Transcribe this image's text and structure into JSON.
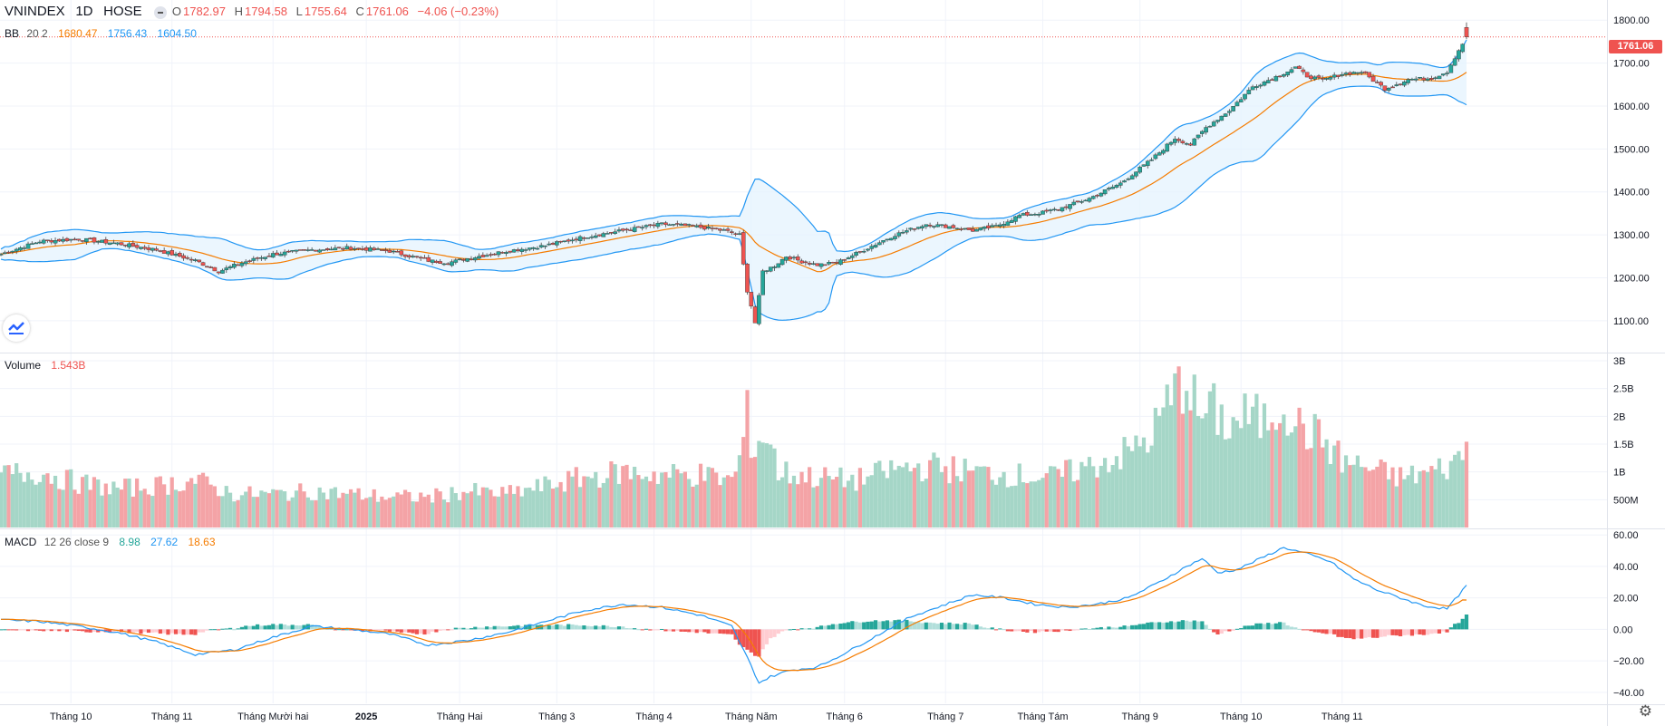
{
  "header": {
    "symbol": "VNINDEX",
    "interval": "1D",
    "exchange": "HOSE",
    "o_label": "O",
    "o": "1782.97",
    "h_label": "H",
    "h": "1794.58",
    "l_label": "L",
    "l": "1755.64",
    "c_label": "C",
    "c": "1761.06",
    "change": "−4.06 (−0.23%)"
  },
  "bb_legend": {
    "name": "BB",
    "params": "20 2",
    "basis": "1680.47",
    "upper": "1756.43",
    "lower": "1604.50"
  },
  "volume_legend": {
    "name": "Volume",
    "value": "1.543B"
  },
  "macd_legend": {
    "name": "MACD",
    "params": "12 26 close 9",
    "hist": "8.98",
    "macd": "27.62",
    "signal": "18.63"
  },
  "last_price_tag": "1761.06",
  "colors": {
    "up": "#26a69a",
    "down": "#ef5350",
    "upVol": "#a5d6c7",
    "downVol": "#f4a3a6",
    "macd": "#2196f3",
    "signal": "#f57c00",
    "bbBasis": "#f57c00",
    "bbBand": "#2196f3",
    "bbFill": "#e3f2fd",
    "grid": "#f0f3fa"
  },
  "chart_data": {
    "type": "candlestick",
    "price_axis": {
      "ticks": [
        "1800.00",
        "1700.00",
        "1600.00",
        "1500.00",
        "1400.00",
        "1300.00",
        "1200.00",
        "1100.00"
      ],
      "ylim": [
        1030,
        1830
      ]
    },
    "volume_axis": {
      "ticks": [
        "3B",
        "2.5B",
        "2B",
        "1.5B",
        "1B",
        "500M"
      ],
      "ylim": [
        0,
        3
      ]
    },
    "macd_axis": {
      "ticks": [
        "60.00",
        "40.00",
        "20.00",
        "0.00",
        "−20.00",
        "−40.00"
      ],
      "ylim": [
        -47,
        63
      ]
    },
    "time_axis": [
      "Tháng 10",
      "Tháng 11",
      "Tháng Mười hai",
      "2025",
      "Tháng Hai",
      "Tháng 3",
      "Tháng 4",
      "Tháng Năm",
      "Tháng 6",
      "Tháng 7",
      "Tháng Tám",
      "Tháng 9",
      "Tháng 10",
      "Tháng 11"
    ],
    "time_axis_bold": "2025",
    "close_anchors": [
      [
        0,
        1255
      ],
      [
        10,
        1285
      ],
      [
        20,
        1290
      ],
      [
        30,
        1280
      ],
      [
        40,
        1265
      ],
      [
        50,
        1240
      ],
      [
        56,
        1215
      ],
      [
        62,
        1235
      ],
      [
        70,
        1255
      ],
      [
        80,
        1265
      ],
      [
        90,
        1270
      ],
      [
        100,
        1262
      ],
      [
        110,
        1240
      ],
      [
        115,
        1235
      ],
      [
        120,
        1245
      ],
      [
        130,
        1262
      ],
      [
        140,
        1275
      ],
      [
        150,
        1295
      ],
      [
        160,
        1310
      ],
      [
        170,
        1325
      ],
      [
        178,
        1320
      ],
      [
        186,
        1310
      ],
      [
        190,
        1300
      ],
      [
        191,
        1230
      ],
      [
        192,
        1170
      ],
      [
        193,
        1135
      ],
      [
        194,
        1095
      ],
      [
        196,
        1215
      ],
      [
        199,
        1228
      ],
      [
        202,
        1250
      ],
      [
        206,
        1238
      ],
      [
        210,
        1230
      ],
      [
        215,
        1235
      ],
      [
        222,
        1265
      ],
      [
        230,
        1300
      ],
      [
        238,
        1325
      ],
      [
        245,
        1318
      ],
      [
        250,
        1310
      ],
      [
        256,
        1320
      ],
      [
        262,
        1345
      ],
      [
        268,
        1352
      ],
      [
        272,
        1360
      ],
      [
        280,
        1385
      ],
      [
        288,
        1420
      ],
      [
        296,
        1475
      ],
      [
        302,
        1525
      ],
      [
        306,
        1510
      ],
      [
        310,
        1550
      ],
      [
        316,
        1590
      ],
      [
        322,
        1645
      ],
      [
        328,
        1668
      ],
      [
        333,
        1690
      ],
      [
        336,
        1670
      ],
      [
        340,
        1660
      ],
      [
        345,
        1675
      ],
      [
        350,
        1680
      ],
      [
        356,
        1640
      ],
      [
        362,
        1662
      ],
      [
        368,
        1665
      ],
      [
        372,
        1680
      ],
      [
        375,
        1730
      ],
      [
        377,
        1761
      ]
    ],
    "volume_anchors_billion": [
      [
        0,
        0.95
      ],
      [
        10,
        1.0
      ],
      [
        20,
        0.8
      ],
      [
        30,
        0.7
      ],
      [
        40,
        0.75
      ],
      [
        50,
        0.85
      ],
      [
        60,
        0.6
      ],
      [
        70,
        0.6
      ],
      [
        80,
        0.65
      ],
      [
        90,
        0.6
      ],
      [
        100,
        0.55
      ],
      [
        110,
        0.55
      ],
      [
        120,
        0.65
      ],
      [
        130,
        0.6
      ],
      [
        140,
        0.75
      ],
      [
        150,
        0.9
      ],
      [
        160,
        1.0
      ],
      [
        170,
        0.95
      ],
      [
        180,
        0.95
      ],
      [
        188,
        0.85
      ],
      [
        190,
        1.2
      ],
      [
        192,
        2.0
      ],
      [
        193,
        1.6
      ],
      [
        194,
        1.4
      ],
      [
        196,
        1.7
      ],
      [
        198,
        1.5
      ],
      [
        200,
        1.0
      ],
      [
        210,
        0.9
      ],
      [
        220,
        0.85
      ],
      [
        230,
        1.05
      ],
      [
        240,
        1.1
      ],
      [
        250,
        1.0
      ],
      [
        260,
        0.95
      ],
      [
        270,
        0.9
      ],
      [
        280,
        1.1
      ],
      [
        290,
        1.35
      ],
      [
        296,
        1.65
      ],
      [
        300,
        2.2
      ],
      [
        305,
        2.75
      ],
      [
        308,
        2.0
      ],
      [
        312,
        2.1
      ],
      [
        316,
        1.8
      ],
      [
        320,
        2.0
      ],
      [
        325,
        1.9
      ],
      [
        330,
        2.3
      ],
      [
        334,
        1.8
      ],
      [
        340,
        1.6
      ],
      [
        345,
        1.2
      ],
      [
        350,
        1.1
      ],
      [
        360,
        0.9
      ],
      [
        368,
        1.0
      ],
      [
        374,
        1.15
      ],
      [
        377,
        1.543
      ]
    ],
    "macd_anchors": [
      [
        0,
        6
      ],
      [
        10,
        5
      ],
      [
        20,
        2
      ],
      [
        30,
        -2
      ],
      [
        40,
        -8
      ],
      [
        50,
        -16
      ],
      [
        60,
        -13
      ],
      [
        70,
        -5
      ],
      [
        80,
        2
      ],
      [
        90,
        0
      ],
      [
        100,
        -3
      ],
      [
        110,
        -10
      ],
      [
        120,
        -7
      ],
      [
        130,
        -2
      ],
      [
        140,
        5
      ],
      [
        150,
        12
      ],
      [
        160,
        16
      ],
      [
        170,
        14
      ],
      [
        180,
        9
      ],
      [
        188,
        2
      ],
      [
        192,
        -18
      ],
      [
        195,
        -34
      ],
      [
        198,
        -30
      ],
      [
        203,
        -26
      ],
      [
        210,
        -24
      ],
      [
        218,
        -14
      ],
      [
        226,
        -3
      ],
      [
        234,
        8
      ],
      [
        242,
        15
      ],
      [
        250,
        22
      ],
      [
        258,
        20
      ],
      [
        266,
        16
      ],
      [
        274,
        14
      ],
      [
        282,
        16
      ],
      [
        290,
        20
      ],
      [
        298,
        30
      ],
      [
        305,
        40
      ],
      [
        309,
        45
      ],
      [
        313,
        36
      ],
      [
        318,
        38
      ],
      [
        324,
        45
      ],
      [
        330,
        52
      ],
      [
        336,
        48
      ],
      [
        342,
        43
      ],
      [
        348,
        32
      ],
      [
        354,
        25
      ],
      [
        360,
        20
      ],
      [
        366,
        15
      ],
      [
        372,
        13
      ],
      [
        377,
        27.62
      ]
    ],
    "last": {
      "bb_basis": 1680.47,
      "bb_upper": 1756.43,
      "bb_lower": 1604.5,
      "macd": 27.62,
      "signal": 18.63,
      "hist": 8.98
    }
  }
}
